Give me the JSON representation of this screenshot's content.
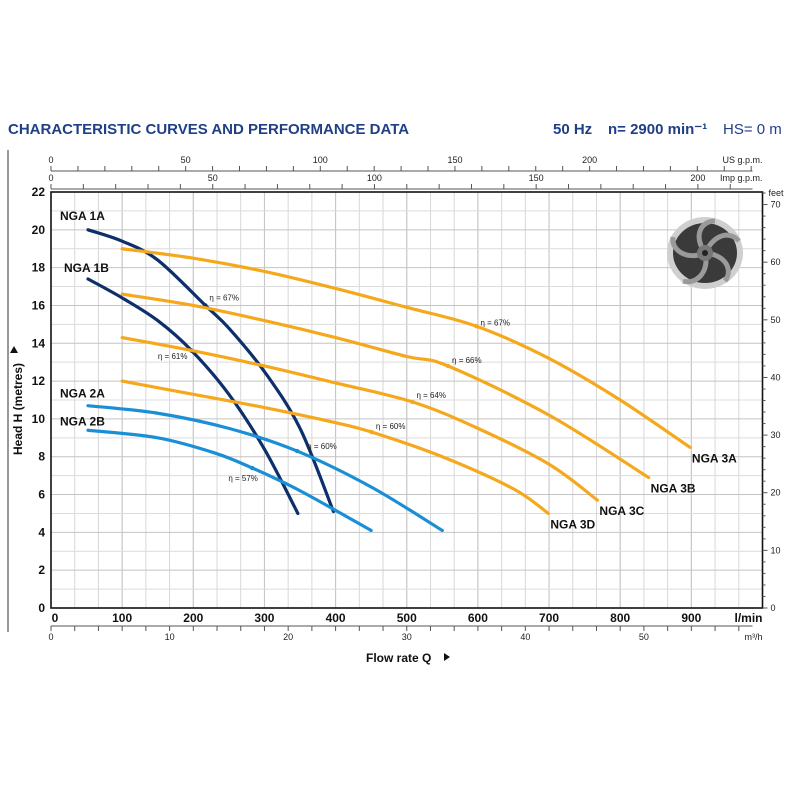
{
  "header": {
    "title": "CHARACTERISTIC CURVES AND PERFORMANCE DATA",
    "freq": "50 Hz",
    "speed": "n= 2900 min⁻¹",
    "hs": "HS= 0 m"
  },
  "chart_data": {
    "type": "line",
    "xlabel": "Flow rate  Q",
    "ylabel": "Head H (metres)",
    "xunit": "l/min",
    "xlim": [
      0,
      1000
    ],
    "ylim": [
      0,
      22
    ],
    "grid": true,
    "x_ticks": [
      0,
      100,
      200,
      300,
      400,
      500,
      600,
      700,
      800,
      900
    ],
    "y_ticks": [
      0,
      2,
      4,
      6,
      8,
      10,
      12,
      14,
      16,
      18,
      20,
      22
    ],
    "secondary_axes": {
      "us_gpm": {
        "unit": "US g.p.m.",
        "ticks": [
          0,
          50,
          100,
          150,
          200
        ]
      },
      "imp_gpm": {
        "unit": "Imp g.p.m.",
        "ticks": [
          0,
          50,
          100,
          150,
          200
        ]
      },
      "m3h": {
        "unit": "m³/h",
        "ticks": [
          0,
          10,
          20,
          30,
          40,
          50
        ]
      },
      "feet": {
        "unit": "feet",
        "ticks": [
          0,
          10,
          20,
          30,
          40,
          50,
          60,
          70
        ]
      }
    },
    "series": [
      {
        "name": "NGA 1A",
        "color": "#0d2f6b",
        "x": [
          52,
          100,
          150,
          217,
          250,
          300,
          350,
          397
        ],
        "y": [
          20.0,
          19.4,
          18.4,
          16.0,
          14.8,
          12.5,
          9.5,
          5.1
        ],
        "eta": {
          "x": 217,
          "y": 16.0,
          "label": "η = 67%"
        }
      },
      {
        "name": "NGA 1B",
        "color": "#0d2f6b",
        "x": [
          52,
          100,
          150,
          198,
          250,
          300,
          347
        ],
        "y": [
          17.4,
          16.4,
          15.2,
          13.6,
          11.3,
          8.4,
          5.0
        ],
        "eta": {
          "x": 198,
          "y": 13.6,
          "label": "η = 61%"
        }
      },
      {
        "name": "NGA 2A",
        "color": "#1a8fd6",
        "x": [
          52,
          150,
          250,
          346,
          450,
          550
        ],
        "y": [
          10.7,
          10.3,
          9.5,
          8.3,
          6.4,
          4.1
        ],
        "eta": {
          "x": 346,
          "y": 8.3,
          "label": "η = 60%"
        }
      },
      {
        "name": "NGA 2B",
        "color": "#1a8fd6",
        "x": [
          52,
          150,
          230,
          283,
          350,
          450
        ],
        "y": [
          9.4,
          9.0,
          8.2,
          7.4,
          6.2,
          4.1
        ],
        "eta": {
          "x": 283,
          "y": 7.4,
          "label": "η = 57%"
        }
      },
      {
        "name": "NGA 3A",
        "color": "#f5a81c",
        "x": [
          100,
          200,
          300,
          400,
          500,
          598,
          700,
          800,
          898
        ],
        "y": [
          19.0,
          18.5,
          17.8,
          16.9,
          15.9,
          14.9,
          13.2,
          11.0,
          8.5
        ],
        "eta": {
          "x": 598,
          "y": 14.9,
          "label": "η = 67%"
        }
      },
      {
        "name": "NGA 3B",
        "color": "#f5a81c",
        "x": [
          100,
          200,
          300,
          400,
          500,
          558,
          700,
          840
        ],
        "y": [
          16.6,
          16.0,
          15.2,
          14.3,
          13.3,
          12.8,
          10.2,
          6.9
        ],
        "eta": {
          "x": 558,
          "y": 12.8,
          "label": "η = 66%"
        }
      },
      {
        "name": "NGA 3C",
        "color": "#f5a81c",
        "x": [
          100,
          200,
          300,
          400,
          508,
          600,
          700,
          768
        ],
        "y": [
          14.3,
          13.6,
          12.8,
          11.9,
          10.9,
          9.5,
          7.6,
          5.7
        ],
        "eta": {
          "x": 508,
          "y": 10.9,
          "label": "η = 64%"
        }
      },
      {
        "name": "NGA 3D",
        "color": "#f5a81c",
        "x": [
          100,
          200,
          300,
          400,
          451,
          550,
          650,
          699
        ],
        "y": [
          12.0,
          11.3,
          10.6,
          9.8,
          9.3,
          8.0,
          6.3,
          5.0
        ],
        "eta": {
          "x": 451,
          "y": 9.3,
          "label": "η = 60%"
        }
      }
    ]
  }
}
